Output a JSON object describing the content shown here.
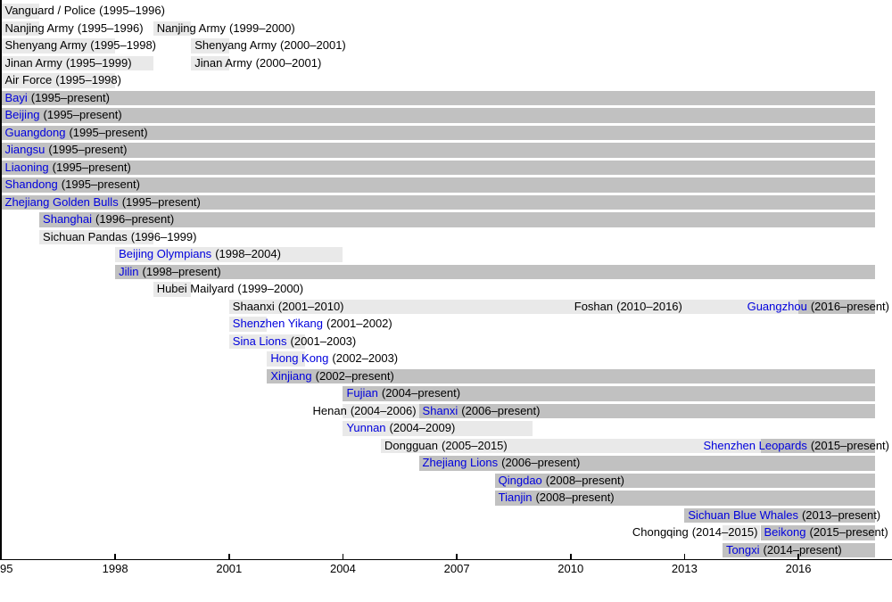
{
  "colors": {
    "active_bar": "#c1c1c1",
    "defunct_bar": "#e9e9e9",
    "link_color": "#0000dd",
    "text_color": "#000000",
    "axis_color": "#000000"
  },
  "chart_data": {
    "type": "timeline",
    "subject": "Basketball team active periods",
    "unit": "year",
    "axis": {
      "min_year": 1995,
      "present_year": 2018,
      "ticks": [
        {
          "year": 1995,
          "label": "95",
          "align": "left"
        },
        {
          "year": 1998,
          "label": "1998",
          "align": "center"
        },
        {
          "year": 2001,
          "label": "2001",
          "align": "center"
        },
        {
          "year": 2004,
          "label": "2004",
          "align": "center"
        },
        {
          "year": 2007,
          "label": "2007",
          "align": "center"
        },
        {
          "year": 2010,
          "label": "2010",
          "align": "center"
        },
        {
          "year": 2013,
          "label": "2013",
          "align": "center"
        },
        {
          "year": 2016,
          "label": "2016",
          "align": "center"
        }
      ]
    },
    "rows": [
      {
        "segments": [
          {
            "name": "Vanguard / Police",
            "period": "(1995–1996)",
            "start": 1995,
            "end": 1996,
            "status": "defunct",
            "link": false
          }
        ]
      },
      {
        "segments": [
          {
            "name": "Nanjing Army",
            "period": "(1995–1996)",
            "start": 1995,
            "end": 1996,
            "status": "defunct",
            "link": false
          },
          {
            "name": "Nanjing Army",
            "period": "(1999–2000)",
            "start": 1999,
            "end": 2000,
            "status": "defunct",
            "link": false
          }
        ]
      },
      {
        "segments": [
          {
            "name": "Shenyang Army",
            "period": "(1995–1998)",
            "start": 1995,
            "end": 1998,
            "status": "defunct",
            "link": false
          },
          {
            "name": "Shenyang Army",
            "period": "(2000–2001)",
            "start": 2000,
            "end": 2001,
            "status": "defunct",
            "link": false
          }
        ]
      },
      {
        "segments": [
          {
            "name": "Jinan Army",
            "period": "(1995–1999)",
            "start": 1995,
            "end": 1999,
            "status": "defunct",
            "link": false
          },
          {
            "name": "Jinan Army",
            "period": "(2000–2001)",
            "start": 2000,
            "end": 2001,
            "status": "defunct",
            "link": false
          }
        ]
      },
      {
        "segments": [
          {
            "name": "Air Force",
            "period": "(1995–1998)",
            "start": 1995,
            "end": 1998,
            "status": "defunct",
            "link": false
          }
        ]
      },
      {
        "segments": [
          {
            "name": "Bayi",
            "period": "(1995–present)",
            "start": 1995,
            "end": "present",
            "status": "active",
            "link": true
          }
        ]
      },
      {
        "segments": [
          {
            "name": "Beijing",
            "period": "(1995–present)",
            "start": 1995,
            "end": "present",
            "status": "active",
            "link": true
          }
        ]
      },
      {
        "segments": [
          {
            "name": "Guangdong",
            "period": "(1995–present)",
            "start": 1995,
            "end": "present",
            "status": "active",
            "link": true
          }
        ]
      },
      {
        "segments": [
          {
            "name": "Jiangsu",
            "period": "(1995–present)",
            "start": 1995,
            "end": "present",
            "status": "active",
            "link": true
          }
        ]
      },
      {
        "segments": [
          {
            "name": "Liaoning",
            "period": "(1995–present)",
            "start": 1995,
            "end": "present",
            "status": "active",
            "link": true
          }
        ]
      },
      {
        "segments": [
          {
            "name": "Shandong",
            "period": "(1995–present)",
            "start": 1995,
            "end": "present",
            "status": "active",
            "link": true
          }
        ]
      },
      {
        "segments": [
          {
            "name": "Zhejiang Golden Bulls",
            "period": "(1995–present)",
            "start": 1995,
            "end": "present",
            "status": "active",
            "link": true
          }
        ]
      },
      {
        "segments": [
          {
            "name": "Shanghai",
            "period": "(1996–present)",
            "start": 1996,
            "end": "present",
            "status": "active",
            "link": true
          }
        ]
      },
      {
        "segments": [
          {
            "name": "Sichuan Pandas",
            "period": "(1996–1999)",
            "start": 1996,
            "end": 1999,
            "status": "defunct",
            "link": false
          }
        ]
      },
      {
        "segments": [
          {
            "name": "Beijing Olympians",
            "period": "(1998–2004)",
            "start": 1998,
            "end": 2004,
            "status": "defunct",
            "link": true
          }
        ]
      },
      {
        "segments": [
          {
            "name": "Jilin",
            "period": "(1998–present)",
            "start": 1998,
            "end": "present",
            "status": "active",
            "link": true
          }
        ]
      },
      {
        "segments": [
          {
            "name": "Hubei Mailyard",
            "period": "(1999–2000)",
            "start": 1999,
            "end": 2000,
            "status": "defunct",
            "link": false
          }
        ]
      },
      {
        "segments": [
          {
            "name": "Shaanxi",
            "period": "(2001–2010)",
            "start": 2001,
            "end": 2010,
            "status": "defunct",
            "link": false
          },
          {
            "name": "Foshan",
            "period": "(2010–2016)",
            "start": 2010,
            "end": 2016,
            "status": "defunct",
            "link": false
          },
          {
            "name": "Guangzhou",
            "period": "(2016–present)",
            "start": 2016,
            "end": "present",
            "status": "active",
            "link": true,
            "anchor": "right-edge"
          }
        ]
      },
      {
        "segments": [
          {
            "name": "Shenzhen Yikang",
            "period": "(2001–2002)",
            "start": 2001,
            "end": 2002,
            "status": "defunct",
            "link": true
          }
        ]
      },
      {
        "segments": [
          {
            "name": "Sina Lions",
            "period": "(2001–2003)",
            "start": 2001,
            "end": 2003,
            "status": "defunct",
            "link": true
          }
        ]
      },
      {
        "segments": [
          {
            "name": "Hong Kong",
            "period": "(2002–2003)",
            "start": 2002,
            "end": 2003,
            "status": "defunct",
            "link": true
          }
        ]
      },
      {
        "segments": [
          {
            "name": "Xinjiang",
            "period": "(2002–present)",
            "start": 2002,
            "end": "present",
            "status": "active",
            "link": true
          }
        ]
      },
      {
        "segments": [
          {
            "name": "Fujian",
            "period": "(2004–present)",
            "start": 2004,
            "end": "present",
            "status": "active",
            "link": true
          }
        ]
      },
      {
        "segments": [
          {
            "name": "Henan",
            "period": "(2004–2006)",
            "start": 2004,
            "end": 2006,
            "status": "defunct",
            "link": false,
            "anchor": "bar-end"
          },
          {
            "name": "Shanxi",
            "period": "(2006–present)",
            "start": 2006,
            "end": "present",
            "status": "active",
            "link": true
          }
        ]
      },
      {
        "segments": [
          {
            "name": "Yunnan",
            "period": "(2004–2009)",
            "start": 2004,
            "end": 2009,
            "status": "defunct",
            "link": true
          }
        ]
      },
      {
        "segments": [
          {
            "name": "Dongguan",
            "period": "(2005–2015)",
            "start": 2005,
            "end": 2015,
            "status": "defunct",
            "link": false
          },
          {
            "name": "Shenzhen Leopards",
            "period": "(2015–present)",
            "start": 2015,
            "end": "present",
            "status": "active",
            "link": true,
            "anchor": "right-edge"
          }
        ]
      },
      {
        "segments": [
          {
            "name": "Zhejiang Lions",
            "period": "(2006–present)",
            "start": 2006,
            "end": "present",
            "status": "active",
            "link": true
          }
        ]
      },
      {
        "segments": [
          {
            "name": "Qingdao",
            "period": "(2008–present)",
            "start": 2008,
            "end": "present",
            "status": "active",
            "link": true
          }
        ]
      },
      {
        "segments": [
          {
            "name": "Tianjin",
            "period": "(2008–present)",
            "start": 2008,
            "end": "present",
            "status": "active",
            "link": true
          }
        ]
      },
      {
        "segments": [
          {
            "name": "Sichuan Blue Whales",
            "period": "(2013–present)",
            "start": 2013,
            "end": "present",
            "status": "active",
            "link": true
          }
        ]
      },
      {
        "segments": [
          {
            "name": "Chongqing",
            "period": "(2014–2015)",
            "start": 2014,
            "end": 2015,
            "status": "defunct",
            "link": false,
            "anchor": "bar-end"
          },
          {
            "name": "Beikong",
            "period": "(2015–present)",
            "start": 2015,
            "end": "present",
            "status": "active",
            "link": true
          }
        ]
      },
      {
        "segments": [
          {
            "name": "Tongxi",
            "period": "(2014–present)",
            "start": 2014,
            "end": "present",
            "status": "active",
            "link": true
          }
        ]
      }
    ]
  }
}
